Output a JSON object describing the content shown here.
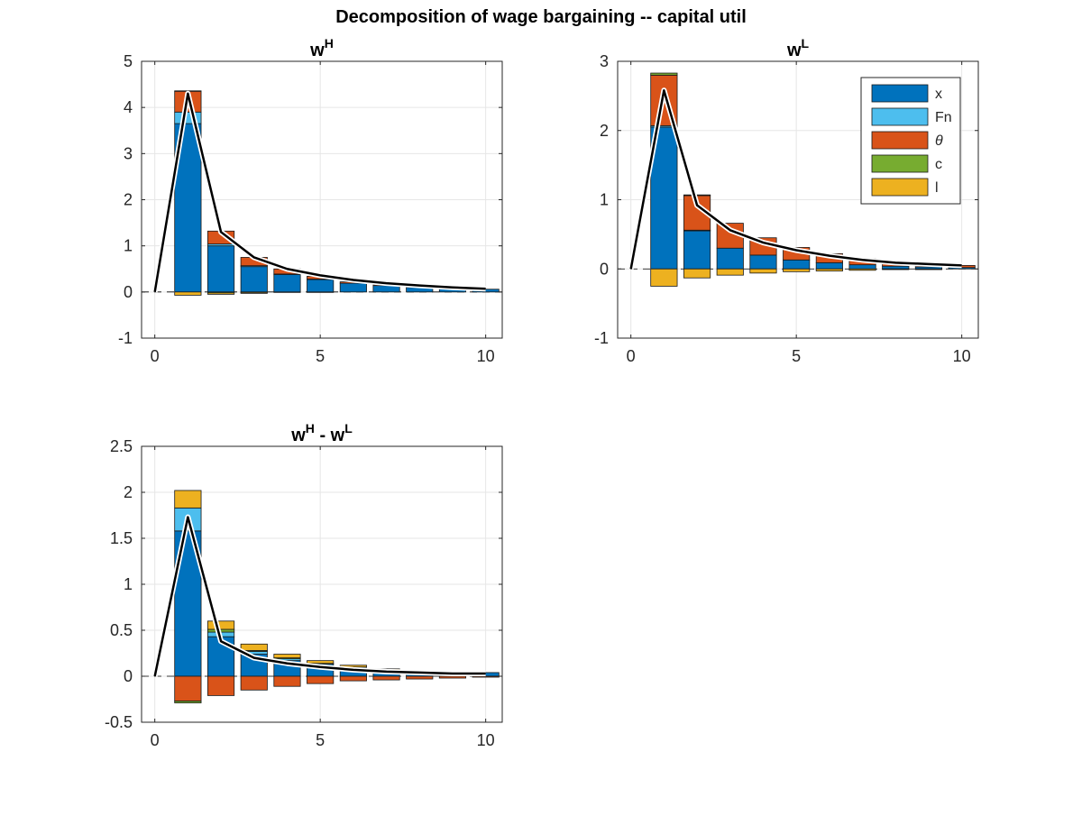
{
  "figure": {
    "title": "Decomposition of wage bargaining -- capital util"
  },
  "chart_data": [
    {
      "type": "bar",
      "title": {
        "base": "w",
        "sup": "H",
        "text": "wH"
      },
      "stacked": true,
      "x": [
        0,
        1,
        2,
        3,
        4,
        5,
        6,
        7,
        8,
        9,
        10
      ],
      "xlim": [
        -0.4,
        10.5
      ],
      "ylim": [
        -1,
        5
      ],
      "xticks": [
        0,
        5,
        10
      ],
      "yticks": [
        -1,
        0,
        1,
        2,
        3,
        4,
        5
      ],
      "grid": true,
      "series": [
        {
          "key": "x",
          "values": [
            0,
            3.65,
            1.0,
            0.55,
            0.38,
            0.27,
            0.19,
            0.14,
            0.1,
            0.07,
            0.06
          ]
        },
        {
          "key": "Fn",
          "values": [
            0,
            0.25,
            0.04,
            0.02,
            0.01,
            0.01,
            0.0,
            0.0,
            0.0,
            0.0,
            0.0
          ]
        },
        {
          "key": "theta",
          "values": [
            0,
            0.45,
            0.28,
            0.18,
            0.11,
            0.06,
            0.03,
            0.02,
            0.01,
            0.0,
            0.0
          ]
        },
        {
          "key": "c",
          "values": [
            0,
            0.01,
            -0.02,
            -0.01,
            0.0,
            0.0,
            0.0,
            0.0,
            0.0,
            0.0,
            0.0
          ]
        },
        {
          "key": "l",
          "values": [
            0,
            -0.07,
            -0.03,
            -0.02,
            -0.01,
            -0.01,
            0.0,
            0.0,
            0.0,
            0.0,
            0.0
          ]
        }
      ],
      "line": {
        "values": [
          0,
          4.3,
          1.3,
          0.75,
          0.5,
          0.36,
          0.26,
          0.19,
          0.14,
          0.1,
          0.07
        ]
      }
    },
    {
      "type": "bar",
      "title": {
        "base": "w",
        "sup": "L",
        "text": "wL"
      },
      "stacked": true,
      "x": [
        0,
        1,
        2,
        3,
        4,
        5,
        6,
        7,
        8,
        9,
        10
      ],
      "xlim": [
        -0.4,
        10.5
      ],
      "ylim": [
        -1,
        3
      ],
      "xticks": [
        0,
        5,
        10
      ],
      "yticks": [
        -1,
        0,
        1,
        2,
        3
      ],
      "grid": true,
      "legend_position": "top-right",
      "series": [
        {
          "key": "x",
          "name": "x",
          "values": [
            0,
            2.05,
            0.55,
            0.3,
            0.2,
            0.13,
            0.09,
            0.06,
            0.04,
            0.03,
            0.02
          ]
        },
        {
          "key": "Fn",
          "name": "Fn",
          "values": [
            0,
            0.02,
            0.01,
            0.0,
            0.0,
            0.0,
            0.0,
            0.0,
            0.0,
            0.0,
            0.0
          ]
        },
        {
          "key": "theta",
          "name": "θ",
          "values": [
            0,
            0.73,
            0.5,
            0.36,
            0.25,
            0.18,
            0.13,
            0.09,
            0.06,
            0.04,
            0.03
          ]
        },
        {
          "key": "c",
          "name": "c",
          "values": [
            0,
            0.03,
            0.01,
            0.0,
            0.0,
            0.0,
            0.0,
            0.0,
            0.0,
            0.0,
            0.0
          ]
        },
        {
          "key": "l",
          "name": "l",
          "values": [
            0,
            -0.25,
            -0.13,
            -0.09,
            -0.06,
            -0.04,
            -0.03,
            -0.02,
            -0.01,
            -0.01,
            0.0
          ]
        }
      ],
      "line": {
        "values": [
          0,
          2.58,
          0.92,
          0.56,
          0.38,
          0.27,
          0.19,
          0.13,
          0.09,
          0.07,
          0.05
        ]
      }
    },
    {
      "type": "bar",
      "title": {
        "text": "wH - wL"
      },
      "stacked": true,
      "x": [
        0,
        1,
        2,
        3,
        4,
        5,
        6,
        7,
        8,
        9,
        10
      ],
      "xlim": [
        -0.4,
        10.5
      ],
      "ylim": [
        -0.5,
        2.5
      ],
      "xticks": [
        0,
        5,
        10
      ],
      "yticks": [
        -0.5,
        0,
        0.5,
        1,
        1.5,
        2,
        2.5
      ],
      "grid": true,
      "series": [
        {
          "key": "x",
          "values": [
            0,
            1.58,
            0.43,
            0.24,
            0.17,
            0.13,
            0.09,
            0.07,
            0.05,
            0.04,
            0.04
          ]
        },
        {
          "key": "Fn",
          "values": [
            0,
            0.25,
            0.05,
            0.03,
            0.02,
            0.01,
            0.01,
            0.0,
            0.0,
            0.0,
            0.0
          ]
        },
        {
          "key": "theta",
          "values": [
            0,
            -0.27,
            -0.21,
            -0.15,
            -0.11,
            -0.08,
            -0.05,
            -0.04,
            -0.03,
            -0.02,
            -0.01
          ]
        },
        {
          "key": "c",
          "values": [
            0,
            -0.02,
            0.03,
            0.01,
            0.01,
            0.0,
            0.0,
            0.0,
            0.0,
            0.0,
            0.0
          ]
        },
        {
          "key": "l",
          "values": [
            0,
            0.19,
            0.09,
            0.07,
            0.04,
            0.03,
            0.02,
            0.01,
            0.01,
            0.0,
            0.0
          ]
        }
      ],
      "line": {
        "values": [
          0,
          1.73,
          0.38,
          0.2,
          0.14,
          0.1,
          0.07,
          0.05,
          0.04,
          0.03,
          0.03
        ]
      }
    }
  ],
  "colors": {
    "x": "#0072BD",
    "Fn": "#4DBEEE",
    "theta": "#D95319",
    "c": "#77AC30",
    "l": "#EDB120",
    "line": "#000000",
    "grid": "#e6e6e6",
    "axis": "#262626"
  }
}
